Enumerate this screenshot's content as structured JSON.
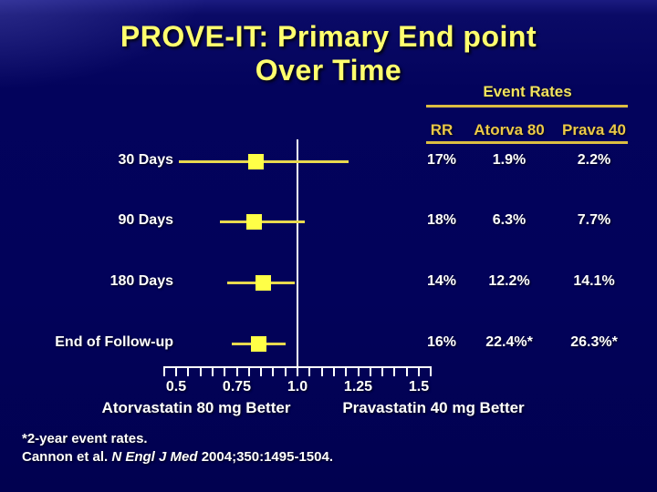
{
  "slide": {
    "title_line1": "PROVE-IT: Primary End point",
    "title_line2": "Over Time"
  },
  "event_rates": {
    "heading": "Event Rates",
    "columns": [
      "RR",
      "Atorva 80",
      "Prava 40"
    ],
    "rows": [
      {
        "rr": "17%",
        "atorva": "1.9%",
        "prava": "2.2%"
      },
      {
        "rr": "18%",
        "atorva": "6.3%",
        "prava": "7.7%"
      },
      {
        "rr": "14%",
        "atorva": "12.2%",
        "prava": "14.1%"
      },
      {
        "rr": "16%",
        "atorva": "22.4%*",
        "prava": "26.3%*"
      }
    ]
  },
  "chart_data": {
    "type": "scatter",
    "subtype": "forest-plot",
    "title": "PROVE-IT: Primary End point Over Time",
    "rows": [
      {
        "label": "30 Days",
        "estimate": 0.83,
        "ci_low": 0.51,
        "ci_high": 1.21,
        "rr_reduction": "17%",
        "atorva80_event_rate": "1.9%",
        "prava40_event_rate": "2.2%"
      },
      {
        "label": "90 Days",
        "estimate": 0.82,
        "ci_low": 0.68,
        "ci_high": 1.03,
        "rr_reduction": "18%",
        "atorva80_event_rate": "6.3%",
        "prava40_event_rate": "7.7%"
      },
      {
        "label": "180 Days",
        "estimate": 0.86,
        "ci_low": 0.71,
        "ci_high": 0.99,
        "rr_reduction": "14%",
        "atorva80_event_rate": "12.2%",
        "prava40_event_rate": "14.1%"
      },
      {
        "label": "End of Follow-up",
        "estimate": 0.84,
        "ci_low": 0.73,
        "ci_high": 0.95,
        "rr_reduction": "16%",
        "atorva80_event_rate": "22.4%*",
        "prava40_event_rate": "26.3%*"
      }
    ],
    "reference_value": 1.0,
    "axis": {
      "min": 0.45,
      "max": 1.55,
      "minor_step": 0.05,
      "ticks": [
        {
          "label": "0.5",
          "value": 0.5
        },
        {
          "label": "0.75",
          "value": 0.75
        },
        {
          "label": "1.0",
          "value": 1.0
        },
        {
          "label": "1.25",
          "value": 1.25
        },
        {
          "label": "1.5",
          "value": 1.5
        }
      ]
    },
    "xlabel_left": "Atorvastatin 80 mg Better",
    "xlabel_right": "Pravastatin 40 mg Better",
    "legend_position": "none",
    "grid": false
  },
  "footnotes": {
    "line1": "*2-year event rates.",
    "citation_prefix": "Cannon et al. ",
    "citation_journal": "N Engl J Med",
    "citation_suffix": " 2004;350:1495-1504."
  },
  "colors": {
    "background": "#02025a",
    "title_yellow": "#ffff6e",
    "gold_text": "#ecc948",
    "gold_rule": "#dcbe42",
    "square_yellow": "#ffff47",
    "ci_line_yellow": "#e8d94f",
    "white": "#ffffff"
  }
}
